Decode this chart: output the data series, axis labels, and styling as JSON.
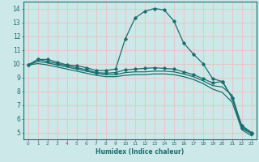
{
  "xlabel": "Humidex (Indice chaleur)",
  "bg_color": "#cce8e8",
  "grid_color": "#e8c8c8",
  "line_color": "#1a6e6e",
  "xlim": [
    -0.5,
    23.5
  ],
  "ylim": [
    4.5,
    14.5
  ],
  "yticks": [
    5,
    6,
    7,
    8,
    9,
    10,
    11,
    12,
    13,
    14
  ],
  "xticks": [
    0,
    1,
    2,
    3,
    4,
    5,
    6,
    7,
    8,
    9,
    10,
    11,
    12,
    13,
    14,
    15,
    16,
    17,
    18,
    19,
    20,
    21,
    22,
    23
  ],
  "lines": [
    {
      "x": [
        0,
        1,
        2,
        3,
        4,
        5,
        6,
        7,
        8,
        9,
        10,
        11,
        12,
        13,
        14,
        15,
        16,
        17,
        18,
        19,
        20,
        21,
        22,
        23
      ],
      "y": [
        9.9,
        10.3,
        10.3,
        10.1,
        9.9,
        9.85,
        9.7,
        9.5,
        9.5,
        9.6,
        11.8,
        13.3,
        13.8,
        14.0,
        13.9,
        13.1,
        11.5,
        10.7,
        10.0,
        8.9,
        8.7,
        7.5,
        5.3,
        4.9
      ],
      "marker": true
    },
    {
      "x": [
        0,
        1,
        2,
        3,
        4,
        5,
        6,
        7,
        8,
        9,
        10,
        11,
        12,
        13,
        14,
        15,
        16,
        17,
        18,
        19,
        20,
        21,
        22,
        23
      ],
      "y": [
        9.9,
        10.3,
        10.15,
        10.0,
        9.85,
        9.7,
        9.55,
        9.35,
        9.3,
        9.35,
        9.55,
        9.6,
        9.65,
        9.7,
        9.65,
        9.6,
        9.4,
        9.2,
        8.9,
        8.6,
        8.7,
        7.5,
        5.5,
        5.0
      ],
      "marker": true
    },
    {
      "x": [
        0,
        1,
        2,
        3,
        4,
        5,
        6,
        7,
        8,
        9,
        10,
        11,
        12,
        13,
        14,
        15,
        16,
        17,
        18,
        19,
        20,
        21,
        22,
        23
      ],
      "y": [
        9.9,
        10.15,
        10.05,
        9.9,
        9.75,
        9.6,
        9.45,
        9.3,
        9.2,
        9.2,
        9.35,
        9.4,
        9.4,
        9.45,
        9.45,
        9.4,
        9.25,
        9.05,
        8.75,
        8.4,
        8.3,
        7.7,
        5.4,
        4.95
      ],
      "marker": false
    },
    {
      "x": [
        0,
        1,
        2,
        3,
        4,
        5,
        6,
        7,
        8,
        9,
        10,
        11,
        12,
        13,
        14,
        15,
        16,
        17,
        18,
        19,
        20,
        21,
        22,
        23
      ],
      "y": [
        9.9,
        10.0,
        9.9,
        9.75,
        9.6,
        9.45,
        9.3,
        9.15,
        9.05,
        9.05,
        9.15,
        9.2,
        9.2,
        9.25,
        9.25,
        9.2,
        9.05,
        8.85,
        8.55,
        8.15,
        7.9,
        7.2,
        5.2,
        4.75
      ],
      "marker": false
    }
  ]
}
